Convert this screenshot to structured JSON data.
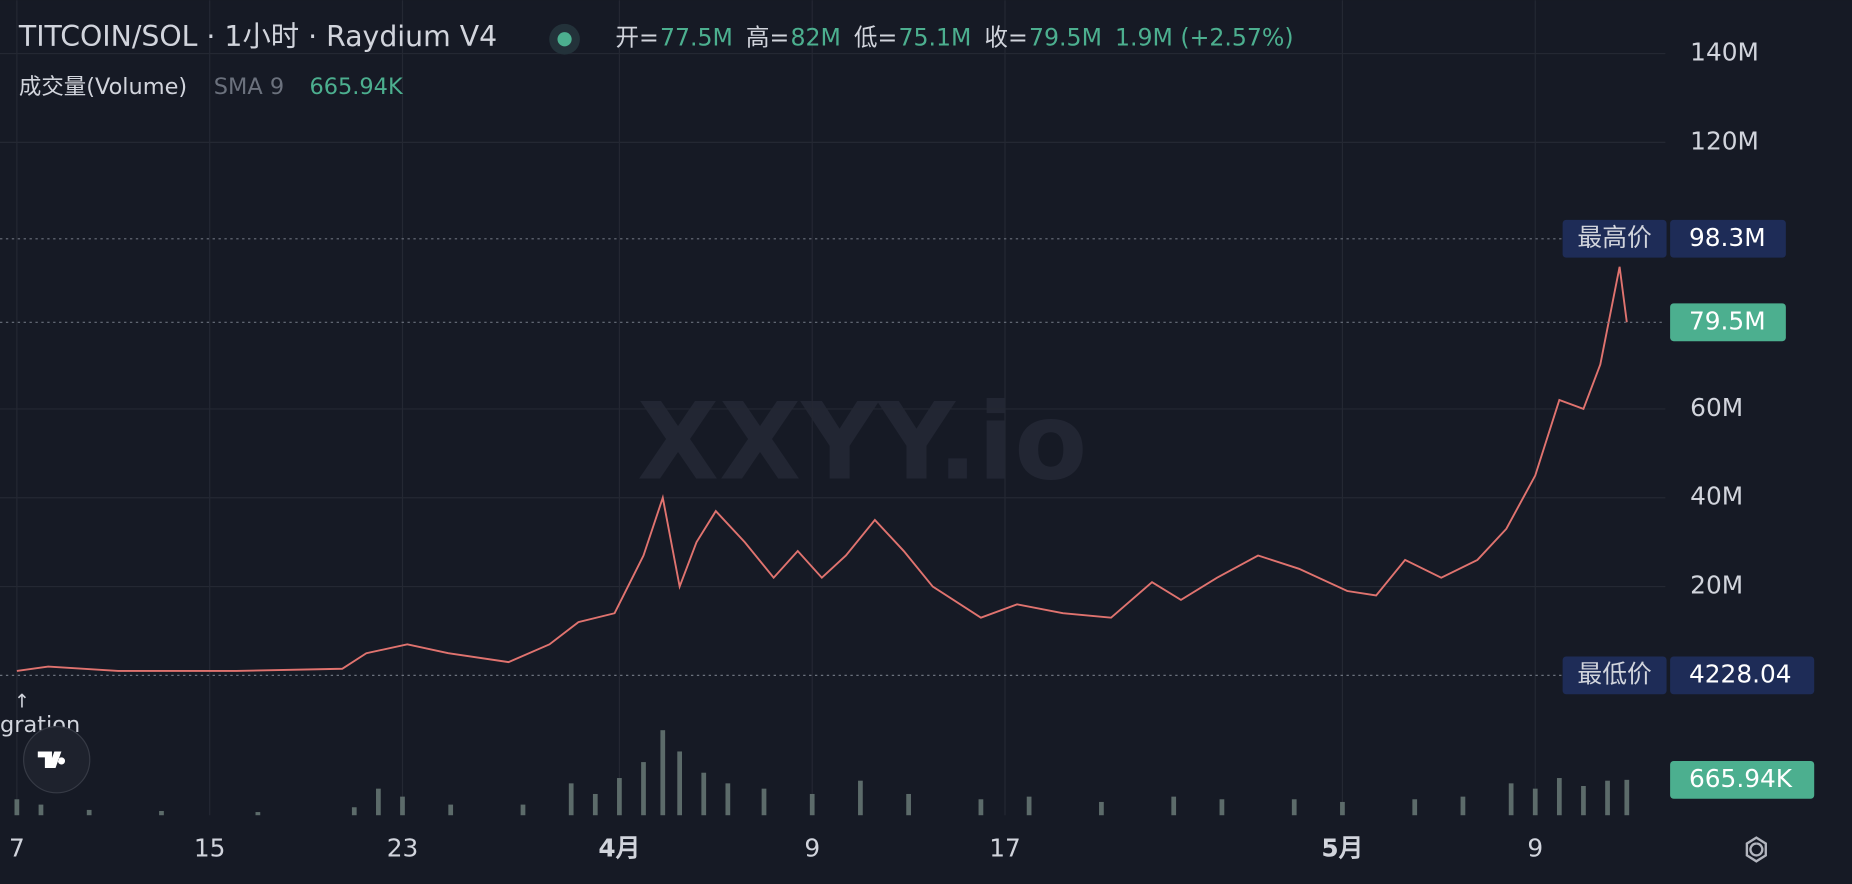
{
  "chart_data": {
    "type": "line",
    "title": "TITCOIN/SOL · 1小时 · Raydium V4",
    "ohlc": [
      {
        "label": "开=",
        "value": "77.5M"
      },
      {
        "label": "高=",
        "value": "82M"
      },
      {
        "label": "低=",
        "value": "75.1M"
      },
      {
        "label": "收=",
        "value": "79.5M"
      }
    ],
    "change": "1.9M (+2.57%)",
    "volume_legend": {
      "name": "成交量(Volume)",
      "sma": "SMA 9",
      "value": "665.94K"
    },
    "watermark": "XXYY.io",
    "annotation": {
      "arrow": "↑",
      "text": "gration"
    },
    "series": [
      {
        "name": "TITCOIN/SOL",
        "color": "#e0736f",
        "x": [
          0,
          1.3,
          4.2,
          9.1,
          13.5,
          14.5,
          16.2,
          17.9,
          20.4,
          22.1,
          23.3,
          24.8,
          26.0,
          26.8,
          27.5,
          28.2,
          29.0,
          30.2,
          31.4,
          32.4,
          33.4,
          34.4,
          35.6,
          36.8,
          38.0,
          40.0,
          41.5,
          43.4,
          45.4,
          47.1,
          48.3,
          49.8,
          51.5,
          53.2,
          55.2,
          56.4,
          57.6,
          59.1,
          60.6,
          61.8,
          63.0,
          64.0,
          65.0,
          65.7,
          66.5,
          66.8
        ],
        "values": [
          1,
          2,
          1,
          1,
          1.5,
          5,
          7,
          5,
          3,
          7,
          12,
          14,
          27,
          40,
          20,
          30,
          37,
          30,
          22,
          28,
          22,
          27,
          35,
          28,
          20,
          13,
          16,
          14,
          13,
          21,
          17,
          22,
          27,
          24,
          19,
          18,
          26,
          22,
          26,
          33,
          45,
          62,
          60,
          70,
          92,
          79.5
        ]
      }
    ],
    "volume": {
      "color": "#5c6b6a",
      "x": [
        0,
        1,
        3,
        6,
        10,
        14,
        15,
        16,
        18,
        21,
        23,
        24,
        25,
        26,
        26.8,
        27.5,
        28.5,
        29.5,
        31,
        33,
        35,
        37,
        40,
        42,
        45,
        48,
        50,
        53,
        55,
        58,
        60,
        62,
        63,
        64,
        65,
        66,
        66.8
      ],
      "values": [
        300,
        200,
        100,
        80,
        60,
        150,
        500,
        350,
        200,
        200,
        600,
        400,
        700,
        1000,
        1600,
        1200,
        800,
        600,
        500,
        400,
        650,
        400,
        300,
        350,
        250,
        350,
        300,
        300,
        250,
        300,
        350,
        600,
        500,
        700,
        550,
        650,
        665.94
      ],
      "ylim": [
        0,
        2000
      ],
      "label": "665.94K"
    },
    "xlim": [
      -0.7,
      68.4
    ],
    "xticks": [
      {
        "value": 0,
        "label": "7"
      },
      {
        "value": 8,
        "label": "15"
      },
      {
        "value": 16,
        "label": "23"
      },
      {
        "value": 25,
        "label": "4月"
      },
      {
        "value": 33,
        "label": "9"
      },
      {
        "value": 41,
        "label": "17"
      },
      {
        "value": 55,
        "label": "5月"
      },
      {
        "value": 63,
        "label": "9"
      }
    ],
    "ylim": [
      -23.5,
      152
    ],
    "yticks": [
      {
        "value": 20,
        "label": "20M"
      },
      {
        "value": 40,
        "label": "40M"
      },
      {
        "value": 60,
        "label": "60M"
      },
      {
        "value": 120,
        "label": "120M"
      },
      {
        "value": 140,
        "label": "140M"
      }
    ],
    "grid": true,
    "high": {
      "name": "最高价",
      "value": 98.3,
      "label": "98.3M"
    },
    "low": {
      "name": "最低价",
      "value": 0.00422804,
      "label": "4228.04"
    },
    "last": {
      "value": 79.5,
      "label": "79.5M"
    }
  }
}
